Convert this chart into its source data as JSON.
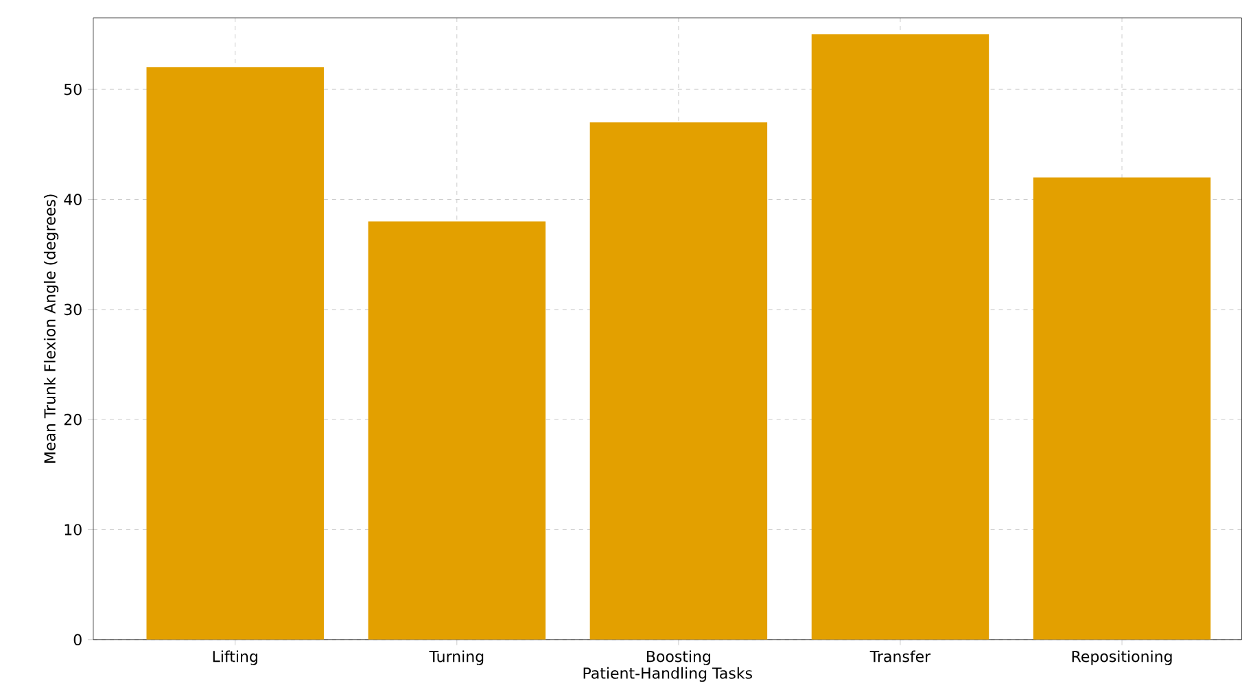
{
  "chart_data": {
    "type": "bar",
    "xlabel": "Patient-Handling Tasks",
    "ylabel": "Mean Trunk Flexion Angle (degrees)",
    "categories": [
      "Lifting",
      "Turning",
      "Boosting",
      "Transfer",
      "Repositioning"
    ],
    "values": [
      52,
      38,
      47,
      55,
      42
    ],
    "color": "#e3a000",
    "ylim": [
      0,
      56.5
    ],
    "yticks": [
      0,
      10,
      20,
      30,
      40,
      50
    ],
    "grid": true
  }
}
